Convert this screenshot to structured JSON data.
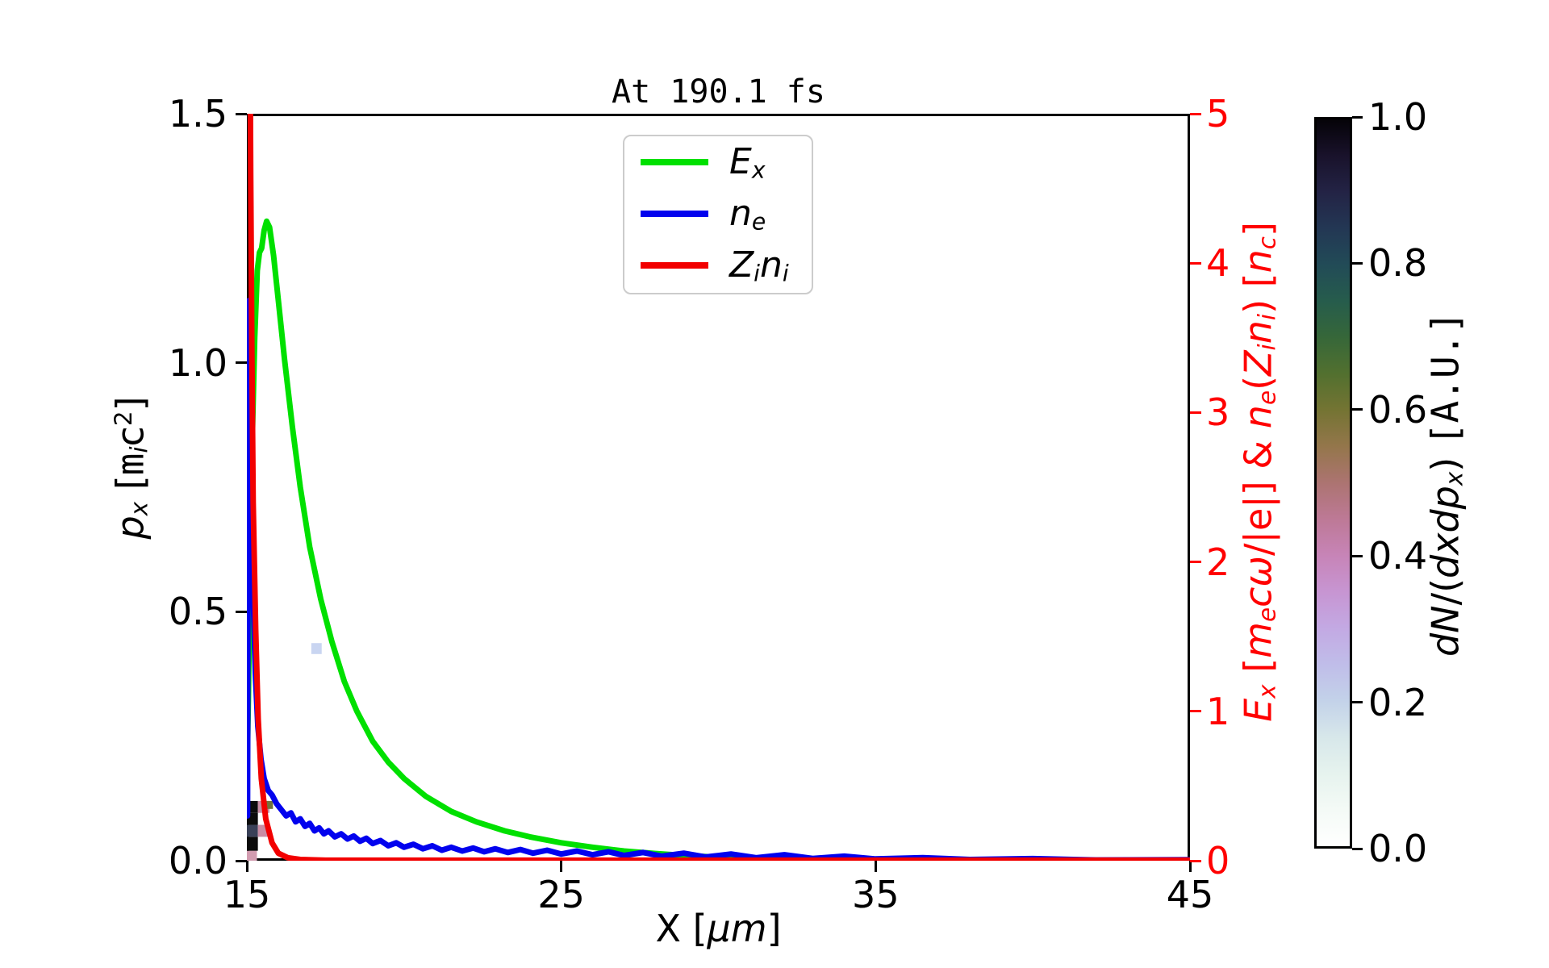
{
  "figure": {
    "background": "#ffffff"
  },
  "chart_data": {
    "type": "line+heatmap",
    "title": "At 190.1 fs",
    "xlabel": "X [μm]",
    "ylabel_left": "p_x [m_i c^2]",
    "ylabel_right": "E_x [m_e cω/|e|] & n_e(Z_i n_i) [n_c]",
    "colorbar_label": "dN/(dxdp_x) [A.U.]",
    "xlim": [
      15,
      45
    ],
    "ylim_left": [
      0,
      1.5
    ],
    "ylim_right": [
      0,
      5
    ],
    "right_axis_color": "#ff0000",
    "x_ticks": [
      {
        "v": 15,
        "label": "15"
      },
      {
        "v": 25,
        "label": "25"
      },
      {
        "v": 35,
        "label": "35"
      },
      {
        "v": 45,
        "label": "45"
      }
    ],
    "left_ticks": [
      {
        "v": 1.5,
        "label": "1.5"
      },
      {
        "v": 1.0,
        "label": "1.0"
      },
      {
        "v": 0.5,
        "label": "0.5"
      },
      {
        "v": 0.0,
        "label": "0.0"
      }
    ],
    "right_ticks": [
      {
        "v": 5,
        "label": "5"
      },
      {
        "v": 4,
        "label": "4"
      },
      {
        "v": 3,
        "label": "3"
      },
      {
        "v": 2,
        "label": "2"
      },
      {
        "v": 1,
        "label": "1"
      },
      {
        "v": 0,
        "label": "0"
      }
    ],
    "label_segments": {
      "x": [
        {
          "t": "X [",
          "s": "n"
        },
        {
          "t": "μm",
          "s": "i"
        },
        {
          "t": "]",
          "s": "n"
        }
      ],
      "left": [
        {
          "t": "p",
          "s": "i"
        },
        {
          "t": "x",
          "s": "isub"
        },
        {
          "t": " [",
          "s": "n"
        },
        {
          "t": "m",
          "s": "mono"
        },
        {
          "t": "i",
          "s": "isub"
        },
        {
          "t": "c",
          "s": "n"
        },
        {
          "t": "2",
          "s": "sup"
        },
        {
          "t": "]",
          "s": "n"
        }
      ],
      "right": [
        {
          "t": "E",
          "s": "i"
        },
        {
          "t": "x",
          "s": "isub"
        },
        {
          "t": " [",
          "s": "n"
        },
        {
          "t": "m",
          "s": "i"
        },
        {
          "t": "e",
          "s": "isub"
        },
        {
          "t": "c",
          "s": "i"
        },
        {
          "t": "ω",
          "s": "i"
        },
        {
          "t": "/|e|] & ",
          "s": "n"
        },
        {
          "t": "n",
          "s": "i"
        },
        {
          "t": "e",
          "s": "isub"
        },
        {
          "t": "(",
          "s": "n"
        },
        {
          "t": "Z",
          "s": "i"
        },
        {
          "t": "i",
          "s": "isub"
        },
        {
          "t": "n",
          "s": "i"
        },
        {
          "t": "i",
          "s": "isub"
        },
        {
          "t": ") [",
          "s": "n"
        },
        {
          "t": "n",
          "s": "i"
        },
        {
          "t": "c",
          "s": "isub"
        },
        {
          "t": "]",
          "s": "n"
        }
      ],
      "colorbar": [
        {
          "t": "dN",
          "s": "i"
        },
        {
          "t": "/(",
          "s": "n"
        },
        {
          "t": "dxdp",
          "s": "i"
        },
        {
          "t": "x",
          "s": "isub"
        },
        {
          "t": ") ",
          "s": "n"
        },
        {
          "t": "[A.U.]",
          "s": "mono"
        }
      ]
    },
    "legend": {
      "entries": [
        {
          "name": "E_x",
          "color": "#00e000",
          "segments": [
            {
              "t": "E",
              "s": "i"
            },
            {
              "t": "x",
              "s": "isub"
            }
          ]
        },
        {
          "name": "n_e",
          "color": "#0202ee",
          "segments": [
            {
              "t": "n",
              "s": "i"
            },
            {
              "t": "e",
              "s": "isub"
            }
          ]
        },
        {
          "name": "Z_i n_i",
          "color": "#f20000",
          "segments": [
            {
              "t": "Z",
              "s": "i"
            },
            {
              "t": "i",
              "s": "isub"
            },
            {
              "t": "n",
              "s": "i"
            },
            {
              "t": "i",
              "s": "isub"
            }
          ]
        }
      ]
    },
    "series": [
      {
        "name": "E_x",
        "axis": "right",
        "color": "#00e000",
        "points": [
          [
            15.0,
            0.5
          ],
          [
            15.05,
            1.1
          ],
          [
            15.1,
            1.9
          ],
          [
            15.17,
            2.8
          ],
          [
            15.25,
            3.5
          ],
          [
            15.33,
            3.95
          ],
          [
            15.4,
            4.07
          ],
          [
            15.47,
            4.1
          ],
          [
            15.55,
            4.22
          ],
          [
            15.63,
            4.28
          ],
          [
            15.72,
            4.24
          ],
          [
            15.85,
            4.05
          ],
          [
            16.0,
            3.75
          ],
          [
            16.2,
            3.35
          ],
          [
            16.45,
            2.9
          ],
          [
            16.7,
            2.5
          ],
          [
            17.0,
            2.1
          ],
          [
            17.35,
            1.75
          ],
          [
            17.7,
            1.47
          ],
          [
            18.1,
            1.2
          ],
          [
            18.5,
            1.0
          ],
          [
            19.0,
            0.8
          ],
          [
            19.5,
            0.66
          ],
          [
            20.0,
            0.55
          ],
          [
            20.7,
            0.43
          ],
          [
            21.5,
            0.33
          ],
          [
            22.3,
            0.26
          ],
          [
            23.2,
            0.2
          ],
          [
            24.0,
            0.16
          ],
          [
            25.0,
            0.12
          ],
          [
            26.0,
            0.09
          ],
          [
            27.0,
            0.065
          ],
          [
            28.0,
            0.048
          ],
          [
            29.0,
            0.034
          ],
          [
            30.0,
            0.023
          ],
          [
            31.0,
            0.015
          ],
          [
            32.0,
            0.009
          ],
          [
            33.0,
            0.005
          ],
          [
            34.5,
            0.003
          ],
          [
            36.0,
            0.002
          ],
          [
            40.0,
            0.001
          ],
          [
            45.0,
            0.001
          ]
        ]
      },
      {
        "name": "n_e",
        "axis": "right",
        "color": "#0202ee",
        "points": [
          [
            15.02,
            0.3
          ],
          [
            15.03,
            1.5
          ],
          [
            15.05,
            2.9
          ],
          [
            15.07,
            3.75
          ],
          [
            15.1,
            3.4
          ],
          [
            15.14,
            2.6
          ],
          [
            15.2,
            1.8
          ],
          [
            15.27,
            1.25
          ],
          [
            15.35,
            0.9
          ],
          [
            15.45,
            0.68
          ],
          [
            15.55,
            0.55
          ],
          [
            15.68,
            0.47
          ],
          [
            15.8,
            0.44
          ],
          [
            15.95,
            0.38
          ],
          [
            16.1,
            0.34
          ],
          [
            16.25,
            0.3
          ],
          [
            16.4,
            0.32
          ],
          [
            16.55,
            0.26
          ],
          [
            16.7,
            0.28
          ],
          [
            16.85,
            0.23
          ],
          [
            17.0,
            0.25
          ],
          [
            17.15,
            0.2
          ],
          [
            17.3,
            0.22
          ],
          [
            17.45,
            0.18
          ],
          [
            17.6,
            0.2
          ],
          [
            17.8,
            0.16
          ],
          [
            18.0,
            0.18
          ],
          [
            18.2,
            0.145
          ],
          [
            18.4,
            0.165
          ],
          [
            18.6,
            0.13
          ],
          [
            18.8,
            0.15
          ],
          [
            19.0,
            0.115
          ],
          [
            19.25,
            0.135
          ],
          [
            19.5,
            0.1
          ],
          [
            19.75,
            0.12
          ],
          [
            20.0,
            0.09
          ],
          [
            20.3,
            0.11
          ],
          [
            20.6,
            0.08
          ],
          [
            20.9,
            0.1
          ],
          [
            21.2,
            0.07
          ],
          [
            21.5,
            0.09
          ],
          [
            21.85,
            0.065
          ],
          [
            22.2,
            0.085
          ],
          [
            22.55,
            0.06
          ],
          [
            22.9,
            0.08
          ],
          [
            23.3,
            0.055
          ],
          [
            23.7,
            0.075
          ],
          [
            24.1,
            0.05
          ],
          [
            24.55,
            0.07
          ],
          [
            25.0,
            0.045
          ],
          [
            25.5,
            0.065
          ],
          [
            26.0,
            0.04
          ],
          [
            26.5,
            0.06
          ],
          [
            27.0,
            0.035
          ],
          [
            27.6,
            0.055
          ],
          [
            28.2,
            0.03
          ],
          [
            28.9,
            0.05
          ],
          [
            29.6,
            0.025
          ],
          [
            30.4,
            0.045
          ],
          [
            31.2,
            0.02
          ],
          [
            32.1,
            0.04
          ],
          [
            33.0,
            0.015
          ],
          [
            34.0,
            0.03
          ],
          [
            35.0,
            0.012
          ],
          [
            36.5,
            0.02
          ],
          [
            38.0,
            0.008
          ],
          [
            40.0,
            0.014
          ],
          [
            42.0,
            0.005
          ],
          [
            45.0,
            0.007
          ]
        ]
      },
      {
        "name": "Z_i n_i",
        "axis": "right",
        "color": "#f20000",
        "points": [
          [
            15.07,
            5.6
          ],
          [
            15.1,
            5.6
          ],
          [
            15.12,
            4.6
          ],
          [
            15.16,
            3.4
          ],
          [
            15.2,
            2.4
          ],
          [
            15.28,
            1.55
          ],
          [
            15.36,
            0.95
          ],
          [
            15.46,
            0.55
          ],
          [
            15.6,
            0.28
          ],
          [
            15.8,
            0.12
          ],
          [
            16.0,
            0.05
          ],
          [
            16.3,
            0.02
          ],
          [
            16.7,
            0.008
          ],
          [
            17.5,
            0.003
          ],
          [
            45.0,
            0.003
          ]
        ]
      }
    ],
    "heatmap_cells": [
      {
        "x": 15.0,
        "p": 0.0,
        "w": 0.32,
        "h": 0.02,
        "color": "#d29cb0"
      },
      {
        "x": 15.0,
        "p": 0.02,
        "w": 0.35,
        "h": 0.028,
        "color": "#0b0b0b"
      },
      {
        "x": 15.0,
        "p": 0.048,
        "w": 0.35,
        "h": 0.024,
        "color": "#3a4158"
      },
      {
        "x": 15.35,
        "p": 0.048,
        "w": 0.35,
        "h": 0.024,
        "color": "#c98da4"
      },
      {
        "x": 15.0,
        "p": 0.072,
        "w": 0.35,
        "h": 0.024,
        "color": "#0b0b0b"
      },
      {
        "x": 15.0,
        "p": 0.096,
        "w": 0.35,
        "h": 0.024,
        "color": "#0b0b0b"
      },
      {
        "x": 15.35,
        "p": 0.096,
        "w": 0.37,
        "h": 0.024,
        "color": "#cb8ea6"
      },
      {
        "x": 15.63,
        "p": 0.104,
        "w": 0.2,
        "h": 0.016,
        "color": "#73743c"
      },
      {
        "x": 17.05,
        "p": 0.415,
        "w": 0.33,
        "h": 0.022,
        "color": "#c9d5f1"
      },
      {
        "x": 15.08,
        "p": 0.92,
        "w": 0.2,
        "h": 0.056,
        "color": "#f6edf0"
      }
    ],
    "colorbar": {
      "range": [
        0,
        1
      ],
      "ticks": [
        {
          "v": 1.0,
          "label": "1.0"
        },
        {
          "v": 0.8,
          "label": "0.8"
        },
        {
          "v": 0.6,
          "label": "0.6"
        },
        {
          "v": 0.4,
          "label": "0.4"
        },
        {
          "v": 0.2,
          "label": "0.2"
        },
        {
          "v": 0.0,
          "label": "0.0"
        }
      ],
      "gradient_stops": [
        [
          0,
          "#ffffff"
        ],
        [
          0.05,
          "#f4faf6"
        ],
        [
          0.1,
          "#e6f3ee"
        ],
        [
          0.15,
          "#d7e7ea"
        ],
        [
          0.2,
          "#c3d2e9"
        ],
        [
          0.25,
          "#c0bde9"
        ],
        [
          0.3,
          "#c3a9e3"
        ],
        [
          0.35,
          "#c795d2"
        ],
        [
          0.4,
          "#c784b7"
        ],
        [
          0.45,
          "#bd7996"
        ],
        [
          0.5,
          "#ac7471"
        ],
        [
          0.55,
          "#94764b"
        ],
        [
          0.6,
          "#747433"
        ],
        [
          0.65,
          "#52702f"
        ],
        [
          0.7,
          "#366739"
        ],
        [
          0.75,
          "#265c4c"
        ],
        [
          0.8,
          "#224b57"
        ],
        [
          0.85,
          "#233754"
        ],
        [
          0.9,
          "#232345"
        ],
        [
          0.95,
          "#19122b"
        ],
        [
          1,
          "#050308"
        ]
      ]
    }
  }
}
